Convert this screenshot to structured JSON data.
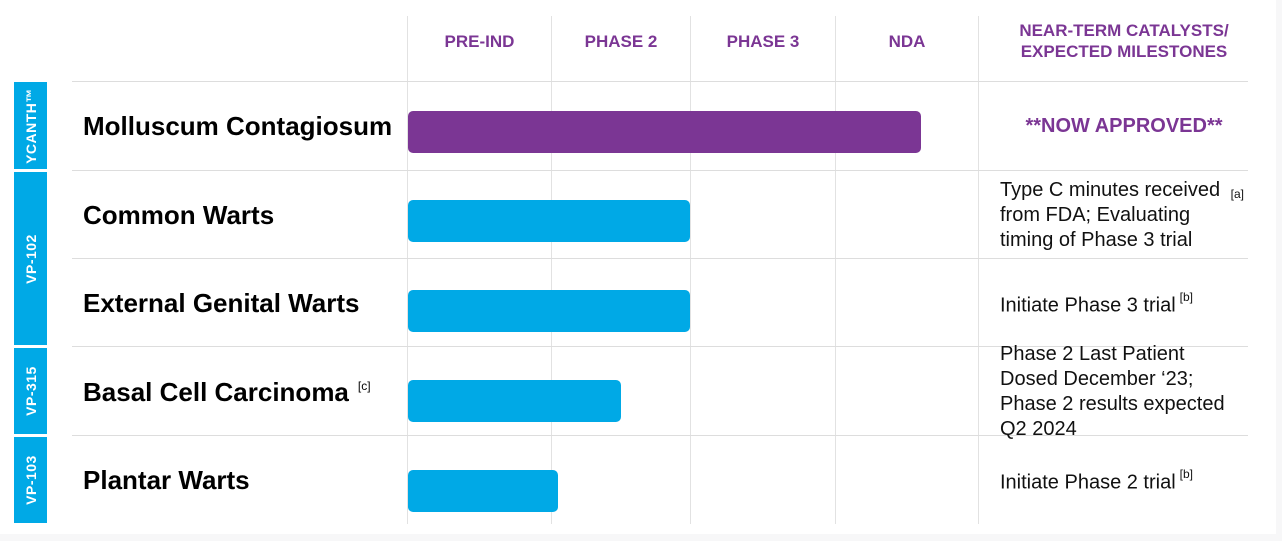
{
  "colors": {
    "header": "#7b3694",
    "approved": "#7b3694",
    "label_bar": "#00a9e6",
    "bar_purple": "#7b3694",
    "bar_blue": "#00a9e6"
  },
  "header": {
    "phases": [
      "PRE-IND",
      "PHASE 2",
      "PHASE 3",
      "NDA"
    ],
    "catalysts": [
      "NEAR-TERM CATALYSTS/",
      "EXPECTED MILESTONES"
    ]
  },
  "groups": [
    {
      "label": "YCANTH™"
    },
    {
      "label": "VP-102"
    },
    {
      "label": "VP-315"
    },
    {
      "label": "VP-103"
    }
  ],
  "chart_data": {
    "type": "bar",
    "orientation": "horizontal",
    "stages": [
      "PRE-IND",
      "PHASE 2",
      "PHASE 3",
      "NDA"
    ],
    "rows": [
      {
        "name": "Molluscum Contagiosum",
        "footnote": "",
        "progress": 3.6,
        "color": "#7b3694",
        "milestone": "**NOW APPROVED**",
        "milestone_note": ""
      },
      {
        "name": "Common Warts",
        "footnote": "",
        "progress": 2.0,
        "color": "#00a9e6",
        "milestone": "Type C minutes received from FDA; Evaluating timing of Phase 3 trial",
        "milestone_note": "[a]"
      },
      {
        "name": "External Genital Warts",
        "footnote": "",
        "progress": 2.0,
        "color": "#00a9e6",
        "milestone": "Initiate Phase 3 trial",
        "milestone_note": "[b]"
      },
      {
        "name": "Basal Cell Carcinoma",
        "footnote": "[c]",
        "progress": 1.5,
        "color": "#00a9e6",
        "milestone": "Phase 2 Last Patient Dosed December ‘23; Phase 2 results expected Q2 2024",
        "milestone_note": ""
      },
      {
        "name": "Plantar Warts",
        "footnote": "",
        "progress": 1.05,
        "color": "#00a9e6",
        "milestone": "Initiate Phase 2 trial",
        "milestone_note": "[b]"
      }
    ]
  }
}
